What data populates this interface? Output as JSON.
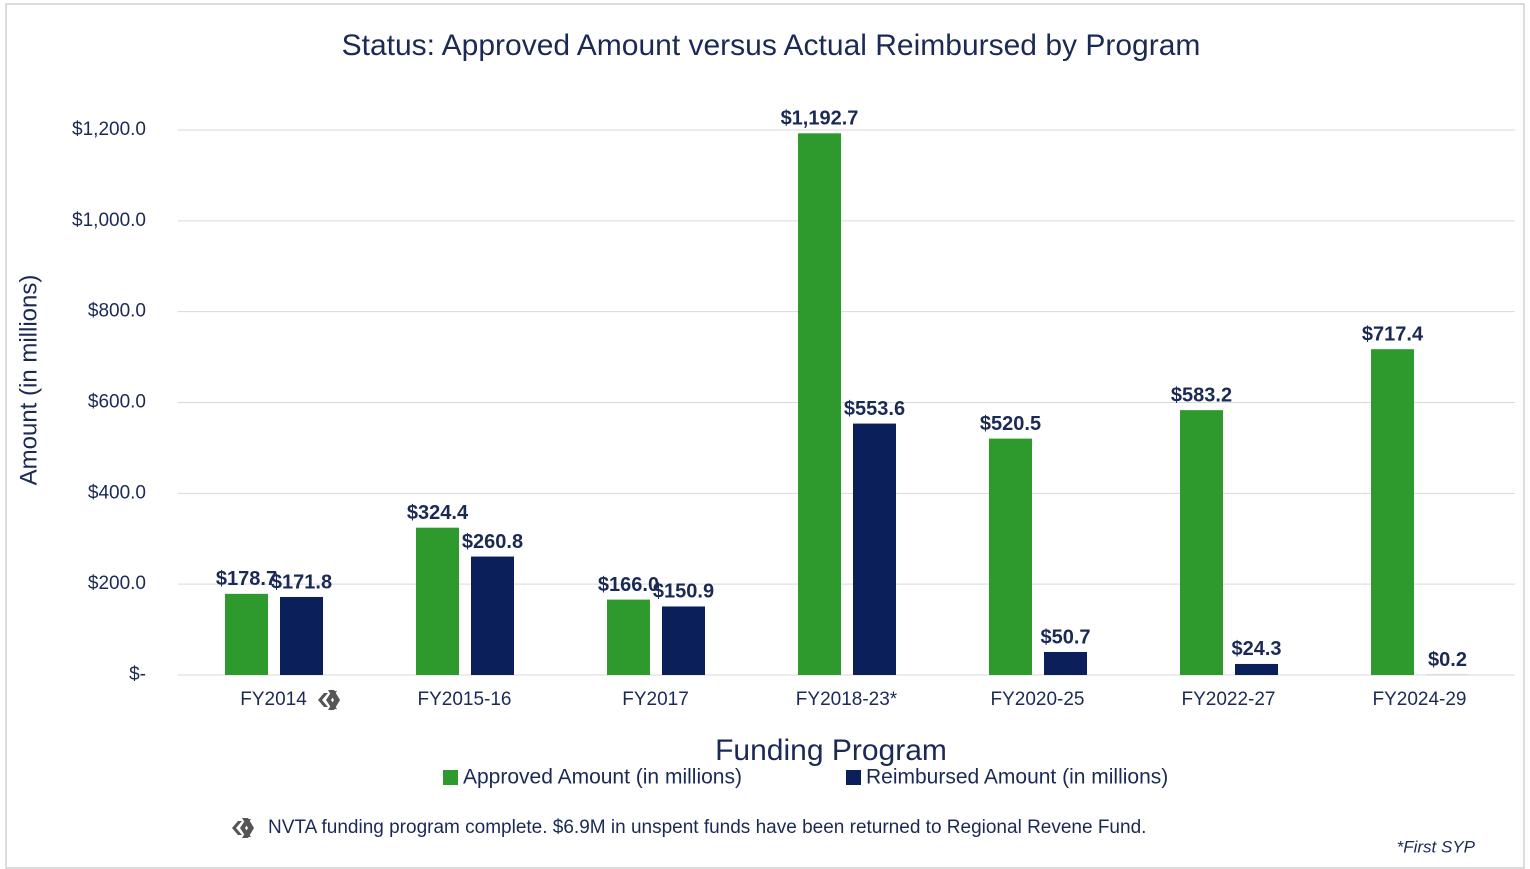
{
  "chart_data": {
    "type": "bar",
    "title": "Status: Approved Amount versus Actual Reimbursed by Program",
    "y_label": "Amount (in millions)",
    "x_label": "Funding Program",
    "categories": [
      "FY2014",
      "FY2015-16",
      "FY2017",
      "FY2018-23*",
      "FY2020-25",
      "FY2022-27",
      "FY2024-29"
    ],
    "series": [
      {
        "name": "Approved Amount (in millions)",
        "color": "#2e9a2e",
        "values": [
          178.7,
          324.4,
          166.0,
          1192.7,
          520.5,
          583.2,
          717.4
        ],
        "value_labels": [
          "$178.7",
          "$324.4",
          "$166.0",
          "$1,192.7",
          "$520.5",
          "$583.2",
          "$717.4"
        ]
      },
      {
        "name": "Reimbursed Amount (in millions)",
        "color": "#0b1f5b",
        "values": [
          171.8,
          260.8,
          150.9,
          553.6,
          50.7,
          24.3,
          0.2
        ],
        "value_labels": [
          "$171.8",
          "$260.8",
          "$150.9",
          "$553.6",
          "$50.7",
          "$24.3",
          "$0.2"
        ]
      }
    ],
    "ylim": [
      0,
      1200
    ],
    "yticks": [
      {
        "value": 0,
        "label": "$-"
      },
      {
        "value": 200,
        "label": "$200.0"
      },
      {
        "value": 400,
        "label": "$400.0"
      },
      {
        "value": 600,
        "label": "$600.0"
      },
      {
        "value": 800,
        "label": "$800.0"
      },
      {
        "value": 1000,
        "label": "$1,000.0"
      },
      {
        "value": 1200,
        "label": "$1,200.0"
      }
    ],
    "grid": true,
    "legend": "bottom",
    "footnote": "NVTA funding program   complete. $6.9M in unspent funds have been returned to Regional Revene Fund.",
    "note": "*First SYP"
  }
}
